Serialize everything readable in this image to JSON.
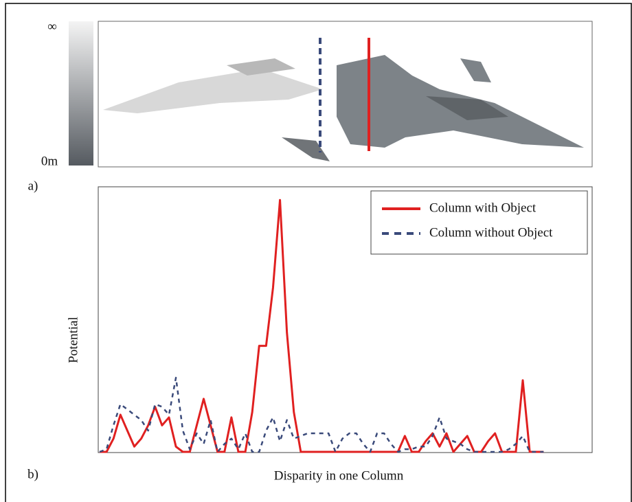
{
  "panel_a": {
    "colorbar_top": "∞",
    "colorbar_bottom": "0m",
    "label": "a)"
  },
  "panel_b_label": "b)",
  "chart_data": {
    "type": "line",
    "xlabel": "Disparity in one Column",
    "ylabel": "Potential",
    "x": [
      0,
      1,
      2,
      3,
      4,
      5,
      6,
      7,
      8,
      9,
      10,
      11,
      12,
      13,
      14,
      15,
      16,
      17,
      18,
      19,
      20,
      21,
      22,
      23,
      24,
      25,
      26,
      27,
      28,
      29,
      30,
      31,
      32,
      33,
      34,
      35,
      36,
      37,
      38,
      39,
      40,
      41,
      42,
      43,
      44,
      45,
      46,
      47,
      48,
      49,
      50,
      51,
      52,
      53,
      54,
      55,
      56,
      57,
      58,
      59,
      60,
      61,
      62,
      63,
      64
    ],
    "xlim": [
      0,
      71
    ],
    "ylim": [
      0,
      100
    ],
    "legend": "upper right",
    "series": [
      {
        "name": "Column with Object",
        "color": "#e02020",
        "linestyle": "solid",
        "values": [
          0,
          0,
          5,
          14,
          8,
          2,
          5,
          10,
          17,
          10,
          13,
          2,
          0,
          0,
          10,
          20,
          10,
          0,
          0,
          13,
          0,
          0,
          15,
          40,
          40,
          62,
          95,
          45,
          15,
          0,
          0,
          0,
          0,
          0,
          0,
          0,
          0,
          0,
          0,
          0,
          0,
          0,
          0,
          0,
          6,
          0,
          0,
          4,
          7,
          2,
          7,
          0,
          3,
          6,
          0,
          0,
          4,
          7,
          0,
          0,
          0,
          27,
          0,
          0,
          0
        ]
      },
      {
        "name": "Column without Object",
        "color": "#3a4a7a",
        "linestyle": "dashed",
        "values": [
          0,
          1,
          10,
          18,
          16,
          14,
          12,
          8,
          18,
          17,
          14,
          28,
          8,
          1,
          7,
          3,
          12,
          0,
          3,
          5,
          1,
          7,
          0,
          0,
          8,
          13,
          4,
          12,
          5,
          6,
          7,
          7,
          7,
          7,
          0,
          5,
          7,
          7,
          3,
          0,
          7,
          7,
          3,
          0,
          1,
          1,
          2,
          2,
          6,
          13,
          5,
          4,
          3,
          1,
          0,
          0,
          0,
          0,
          0,
          1,
          3,
          6,
          0,
          0,
          0
        ]
      }
    ]
  }
}
